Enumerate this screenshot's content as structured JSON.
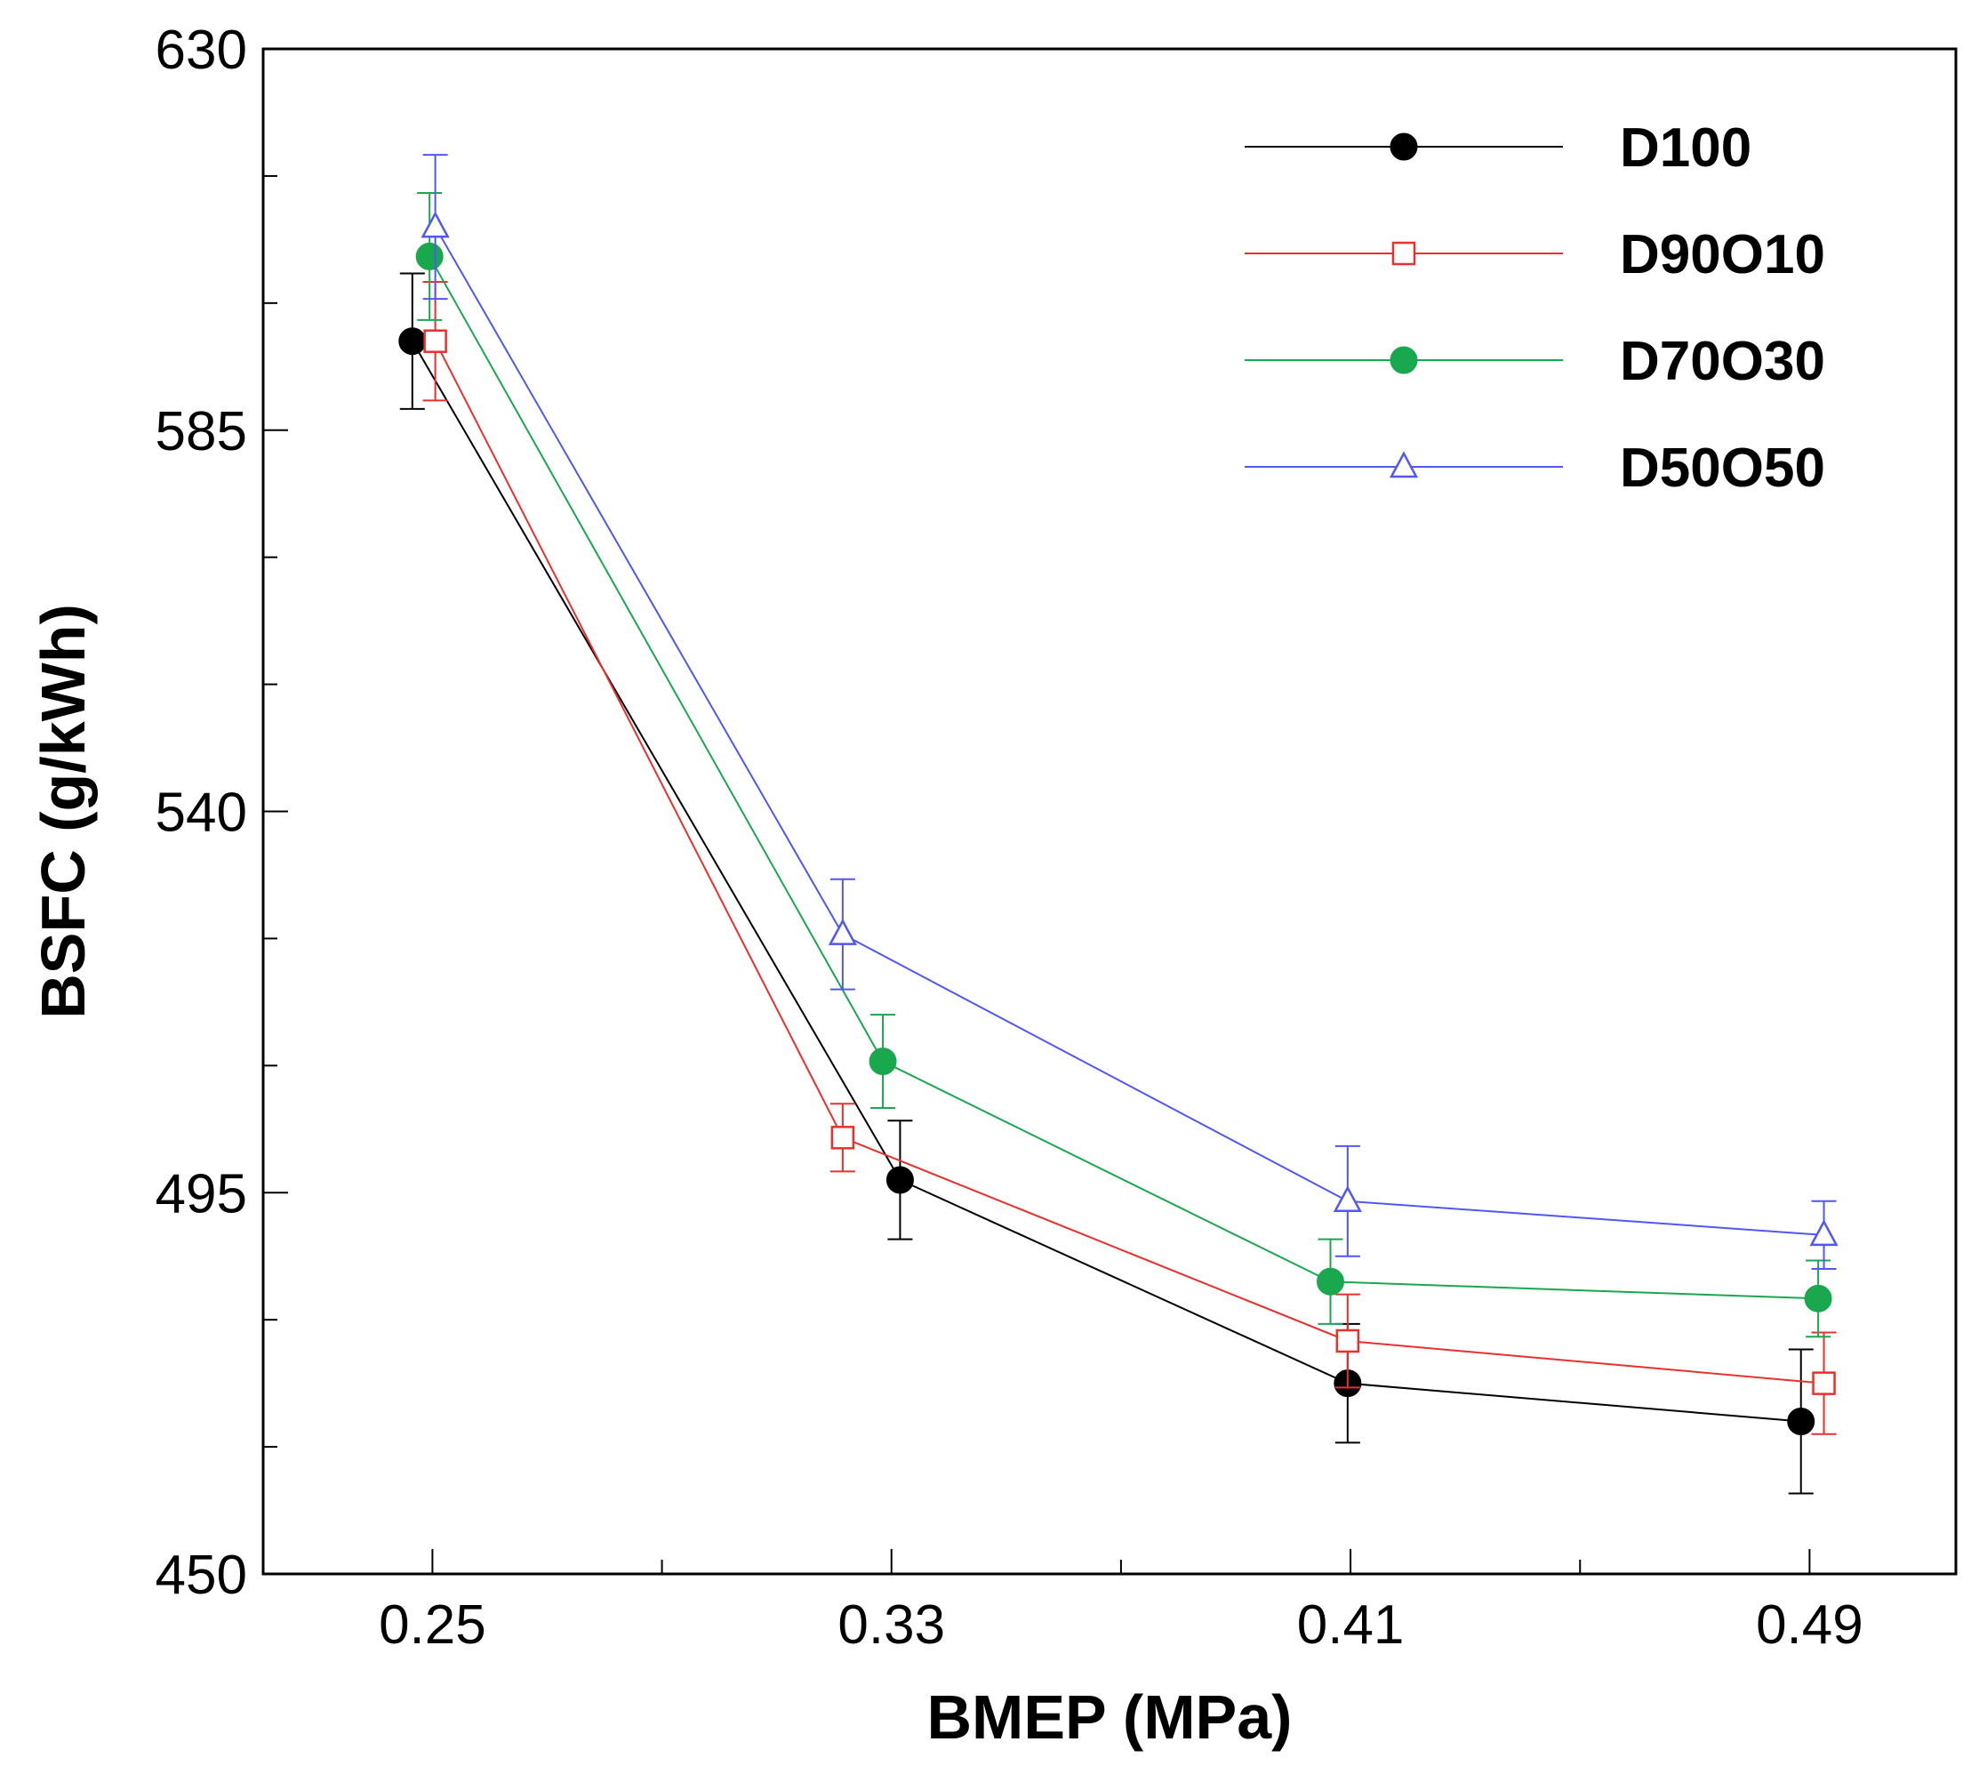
{
  "chart_data": {
    "type": "line",
    "title": "",
    "xlabel": "BMEP (MPa)",
    "ylabel": "BSFC (g/kWh)",
    "xlim": [
      0.2205,
      0.5155
    ],
    "ylim": [
      450,
      630
    ],
    "x_ticks": [
      "0.25",
      "0.33",
      "0.41",
      "0.49"
    ],
    "y_ticks": [
      "450",
      "495",
      "540",
      "585",
      "630"
    ],
    "x_minor_ticks": [
      0.29,
      0.37,
      0.45
    ],
    "y_minor_ticks": [
      465,
      480,
      510,
      525,
      555,
      570,
      600,
      615
    ],
    "legend_position": "top-right",
    "series": [
      {
        "name": "D100",
        "color": "#000000",
        "marker": "filled-circle",
        "x": [
          0.2465,
          0.3315,
          0.4095,
          0.4885
        ],
        "y": [
          595.5,
          496.5,
          472.5,
          468.0
        ],
        "err": [
          8,
          7,
          7,
          8.5
        ]
      },
      {
        "name": "D90O10",
        "color": "#e8312c",
        "marker": "open-square",
        "x": [
          0.2505,
          0.3215,
          0.4095,
          0.4925
        ],
        "y": [
          595.5,
          501.5,
          477.5,
          472.5
        ],
        "err": [
          7,
          4,
          5.5,
          6
        ]
      },
      {
        "name": "D70O30",
        "color": "#1aa84e",
        "marker": "filled-circle",
        "x": [
          0.2495,
          0.3285,
          0.4065,
          0.4915
        ],
        "y": [
          605.5,
          510.5,
          484.5,
          482.5
        ],
        "err": [
          7.5,
          5.5,
          5,
          4.5
        ]
      },
      {
        "name": "D50O50",
        "color": "#5057f5",
        "marker": "open-triangle",
        "x": [
          0.2505,
          0.3215,
          0.4095,
          0.4925
        ],
        "y": [
          609.0,
          525.5,
          494.0,
          490.0
        ],
        "err": [
          8.5,
          6.5,
          6.5,
          4
        ]
      }
    ]
  }
}
